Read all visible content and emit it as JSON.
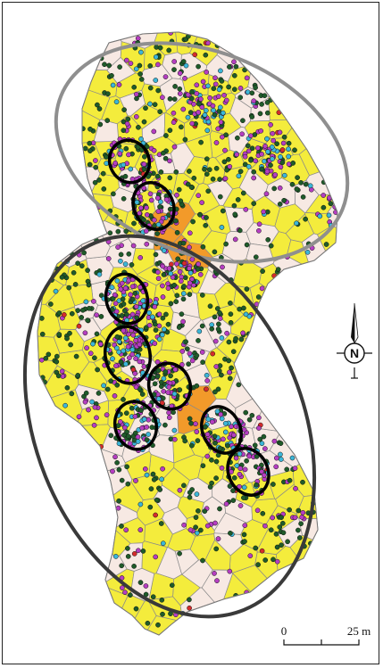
{
  "map": {
    "colors": {
      "background": "#ffffff",
      "cell_yellow": "#f4ec3c",
      "cell_pink": "#f7e9e3",
      "cell_orange": "#f29a2a",
      "cell_border": "#8a8a8a",
      "dot_green": "#1f5b2a",
      "dot_magenta": "#b53ec1",
      "dot_cyan": "#3cb6d8",
      "dot_red": "#d42c2c",
      "ellipse_light": "#8f8f8f",
      "ellipse_dark": "#3a3a3a",
      "circle": "#000000"
    },
    "north_arrow": {
      "letter": "N",
      "icon": "compass-north-arrow"
    },
    "scale_bar": {
      "start_label": "0",
      "end_label": "25 m"
    },
    "clusters": {
      "large_ellipses": 2,
      "small_circles": 8
    }
  }
}
